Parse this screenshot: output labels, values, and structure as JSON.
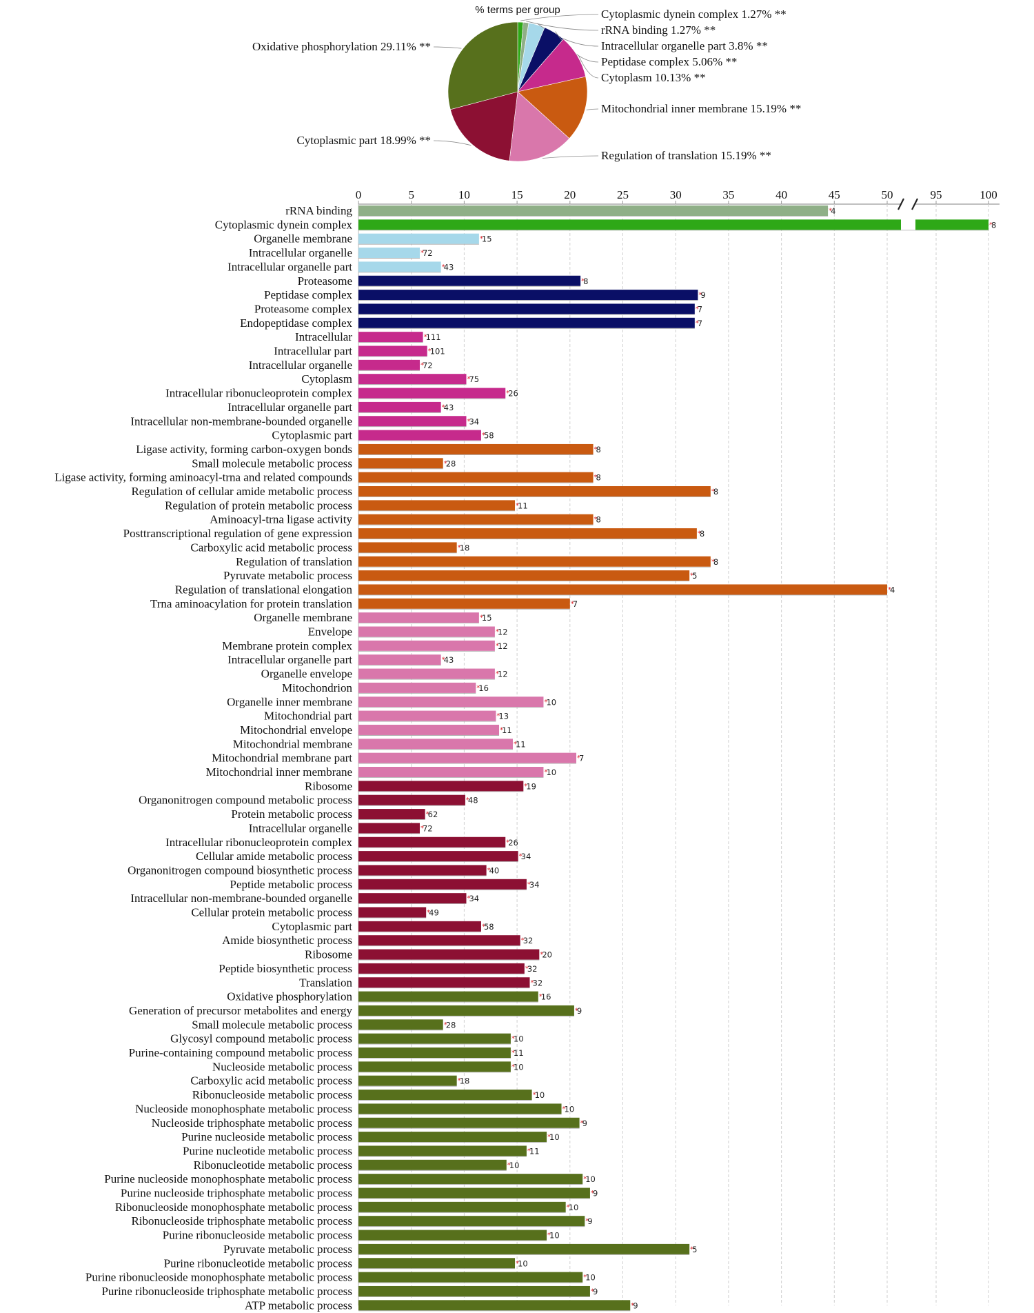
{
  "colors": {
    "rrna": "#8faf87",
    "dynein": "#2ea817",
    "organelle_part": "#a6d8ea",
    "peptidase": "#0a0f66",
    "cytoplasm": "#c62a8c",
    "mito_inner": "#c95a11",
    "translation_reg": "#d977ab",
    "cytoplasmic_part": "#8c1033",
    "oxphos": "#57701c",
    "marker": "#d9232a"
  },
  "chart_data": [
    {
      "type": "pie",
      "title": "% terms per group",
      "slices": [
        {
          "label": "Cytoplasmic dynein complex 1.27% **",
          "value": 1.27,
          "color_key": "dynein"
        },
        {
          "label": "rRNA binding 1.27% **",
          "value": 1.27,
          "color_key": "rrna"
        },
        {
          "label": "Intracellular organelle part 3.8% **",
          "value": 3.8,
          "color_key": "organelle_part"
        },
        {
          "label": "Peptidase complex 5.06% **",
          "value": 5.06,
          "color_key": "peptidase"
        },
        {
          "label": "Cytoplasm 10.13% **",
          "value": 10.13,
          "color_key": "cytoplasm"
        },
        {
          "label": "Mitochondrial inner membrane 15.19% **",
          "value": 15.19,
          "color_key": "mito_inner"
        },
        {
          "label": "Regulation of translation 15.19% **",
          "value": 15.19,
          "color_key": "translation_reg"
        },
        {
          "label": "Cytoplasmic part 18.99% **",
          "value": 18.99,
          "color_key": "cytoplasmic_part"
        },
        {
          "label": "Oxidative phosphorylation 29.11% **",
          "value": 29.11,
          "color_key": "oxphos"
        }
      ]
    },
    {
      "type": "bar",
      "orientation": "horizontal",
      "x_ticks": [
        "0",
        "5",
        "10",
        "15",
        "20",
        "25",
        "30",
        "35",
        "40",
        "45",
        "50",
        "95",
        "100"
      ],
      "x_break": [
        52,
        93
      ],
      "xlim": [
        0,
        100
      ],
      "grid": true,
      "bars": [
        {
          "term": "rRNA binding",
          "value": 44.4,
          "count": "4",
          "group": "rrna"
        },
        {
          "term": "Cytoplasmic dynein complex",
          "value": 100,
          "count": "8",
          "group": "dynein"
        },
        {
          "term": "Organelle membrane",
          "value": 11.4,
          "count": "15",
          "group": "organelle_part"
        },
        {
          "term": "Intracellular organelle",
          "value": 5.8,
          "count": "72",
          "group": "organelle_part"
        },
        {
          "term": "Intracellular organelle part",
          "value": 7.8,
          "count": "43",
          "group": "organelle_part"
        },
        {
          "term": "Proteasome",
          "value": 21.0,
          "count": "8",
          "group": "peptidase"
        },
        {
          "term": "Peptidase complex",
          "value": 32.1,
          "count": "9",
          "group": "peptidase"
        },
        {
          "term": "Proteasome complex",
          "value": 31.8,
          "count": "7",
          "group": "peptidase"
        },
        {
          "term": "Endopeptidase complex",
          "value": 31.8,
          "count": "7",
          "group": "peptidase"
        },
        {
          "term": "Intracellular",
          "value": 6.1,
          "count": "111",
          "group": "cytoplasm"
        },
        {
          "term": "Intracellular part",
          "value": 6.5,
          "count": "101",
          "group": "cytoplasm"
        },
        {
          "term": "Intracellular organelle",
          "value": 5.8,
          "count": "72",
          "group": "cytoplasm"
        },
        {
          "term": "Cytoplasm",
          "value": 10.2,
          "count": "75",
          "group": "cytoplasm"
        },
        {
          "term": "Intracellular ribonucleoprotein complex",
          "value": 13.9,
          "count": "26",
          "group": "cytoplasm"
        },
        {
          "term": "Intracellular organelle part",
          "value": 7.8,
          "count": "43",
          "group": "cytoplasm"
        },
        {
          "term": "Intracellular non-membrane-bounded organelle",
          "value": 10.2,
          "count": "34",
          "group": "cytoplasm"
        },
        {
          "term": "Cytoplasmic part",
          "value": 11.6,
          "count": "58",
          "group": "cytoplasm"
        },
        {
          "term": "Ligase activity, forming carbon-oxygen bonds",
          "value": 22.2,
          "count": "8",
          "group": "mito_inner"
        },
        {
          "term": "Small molecule metabolic process",
          "value": 8.0,
          "count": "28",
          "group": "mito_inner"
        },
        {
          "term": "Ligase activity, forming aminoacyl-trna and related compounds",
          "value": 22.2,
          "count": "8",
          "group": "mito_inner"
        },
        {
          "term": "Regulation of cellular amide metabolic process",
          "value": 33.3,
          "count": "8",
          "group": "mito_inner"
        },
        {
          "term": "Regulation of protein metabolic process",
          "value": 14.8,
          "count": "11",
          "group": "mito_inner"
        },
        {
          "term": "Aminoacyl-trna ligase activity",
          "value": 22.2,
          "count": "8",
          "group": "mito_inner"
        },
        {
          "term": "Posttranscriptional regulation of gene expression",
          "value": 32.0,
          "count": "8",
          "group": "mito_inner"
        },
        {
          "term": "Carboxylic acid metabolic process",
          "value": 9.3,
          "count": "18",
          "group": "mito_inner"
        },
        {
          "term": "Regulation of translation",
          "value": 33.3,
          "count": "8",
          "group": "mito_inner"
        },
        {
          "term": "Pyruvate metabolic process",
          "value": 31.3,
          "count": "5",
          "group": "mito_inner"
        },
        {
          "term": "Regulation of translational elongation",
          "value": 50.0,
          "count": "4",
          "group": "mito_inner"
        },
        {
          "term": "Trna aminoacylation for protein translation",
          "value": 20.0,
          "count": "7",
          "group": "mito_inner"
        },
        {
          "term": "Organelle membrane",
          "value": 11.4,
          "count": "15",
          "group": "translation_reg"
        },
        {
          "term": "Envelope",
          "value": 12.9,
          "count": "12",
          "group": "translation_reg"
        },
        {
          "term": "Membrane protein complex",
          "value": 12.9,
          "count": "12",
          "group": "translation_reg"
        },
        {
          "term": "Intracellular organelle part",
          "value": 7.8,
          "count": "43",
          "group": "translation_reg"
        },
        {
          "term": "Organelle envelope",
          "value": 12.9,
          "count": "12",
          "group": "translation_reg"
        },
        {
          "term": "Mitochondrion",
          "value": 11.1,
          "count": "16",
          "group": "translation_reg"
        },
        {
          "term": "Organelle inner membrane",
          "value": 17.5,
          "count": "10",
          "group": "translation_reg"
        },
        {
          "term": "Mitochondrial part",
          "value": 13.0,
          "count": "13",
          "group": "translation_reg"
        },
        {
          "term": "Mitochondrial envelope",
          "value": 13.3,
          "count": "11",
          "group": "translation_reg"
        },
        {
          "term": "Mitochondrial membrane",
          "value": 14.6,
          "count": "11",
          "group": "translation_reg"
        },
        {
          "term": "Mitochondrial membrane part",
          "value": 20.6,
          "count": "7",
          "group": "translation_reg"
        },
        {
          "term": "Mitochondrial inner membrane",
          "value": 17.5,
          "count": "10",
          "group": "translation_reg"
        },
        {
          "term": "Ribosome",
          "value": 15.6,
          "count": "19",
          "group": "cytoplasmic_part"
        },
        {
          "term": "Organonitrogen compound metabolic process",
          "value": 10.1,
          "count": "48",
          "group": "cytoplasmic_part"
        },
        {
          "term": "Protein metabolic process",
          "value": 6.3,
          "count": "62",
          "group": "cytoplasmic_part"
        },
        {
          "term": "Intracellular organelle",
          "value": 5.8,
          "count": "72",
          "group": "cytoplasmic_part"
        },
        {
          "term": "Intracellular ribonucleoprotein complex",
          "value": 13.9,
          "count": "26",
          "group": "cytoplasmic_part"
        },
        {
          "term": "Cellular amide metabolic process",
          "value": 15.1,
          "count": "34",
          "group": "cytoplasmic_part"
        },
        {
          "term": "Organonitrogen compound biosynthetic process",
          "value": 12.1,
          "count": "40",
          "group": "cytoplasmic_part"
        },
        {
          "term": "Peptide metabolic process",
          "value": 15.9,
          "count": "34",
          "group": "cytoplasmic_part"
        },
        {
          "term": "Intracellular non-membrane-bounded organelle",
          "value": 10.2,
          "count": "34",
          "group": "cytoplasmic_part"
        },
        {
          "term": "Cellular protein metabolic process",
          "value": 6.4,
          "count": "49",
          "group": "cytoplasmic_part"
        },
        {
          "term": "Cytoplasmic part",
          "value": 11.6,
          "count": "58",
          "group": "cytoplasmic_part"
        },
        {
          "term": "Amide biosynthetic process",
          "value": 15.3,
          "count": "32",
          "group": "cytoplasmic_part"
        },
        {
          "term": "Ribosome",
          "value": 17.1,
          "count": "20",
          "group": "cytoplasmic_part"
        },
        {
          "term": "Peptide biosynthetic process",
          "value": 15.7,
          "count": "32",
          "group": "cytoplasmic_part"
        },
        {
          "term": "Translation",
          "value": 16.2,
          "count": "32",
          "group": "cytoplasmic_part"
        },
        {
          "term": "Oxidative phosphorylation",
          "value": 17.0,
          "count": "16",
          "group": "oxphos"
        },
        {
          "term": "Generation of precursor metabolites and energy",
          "value": 20.4,
          "count": "9",
          "group": "oxphos"
        },
        {
          "term": "Small molecule metabolic process",
          "value": 8.0,
          "count": "28",
          "group": "oxphos"
        },
        {
          "term": "Glycosyl compound metabolic process",
          "value": 14.4,
          "count": "10",
          "group": "oxphos"
        },
        {
          "term": "Purine-containing compound metabolic process",
          "value": 14.4,
          "count": "11",
          "group": "oxphos"
        },
        {
          "term": "Nucleoside metabolic process",
          "value": 14.4,
          "count": "10",
          "group": "oxphos"
        },
        {
          "term": "Carboxylic acid metabolic process",
          "value": 9.3,
          "count": "18",
          "group": "oxphos"
        },
        {
          "term": "Ribonucleoside metabolic process",
          "value": 16.4,
          "count": "10",
          "group": "oxphos"
        },
        {
          "term": "Nucleoside monophosphate metabolic process",
          "value": 19.2,
          "count": "10",
          "group": "oxphos"
        },
        {
          "term": "Nucleoside triphosphate metabolic process",
          "value": 20.9,
          "count": "9",
          "group": "oxphos"
        },
        {
          "term": "Purine nucleoside metabolic process",
          "value": 17.8,
          "count": "10",
          "group": "oxphos"
        },
        {
          "term": "Purine nucleotide metabolic process",
          "value": 15.9,
          "count": "11",
          "group": "oxphos"
        },
        {
          "term": "Ribonucleotide metabolic process",
          "value": 14.0,
          "count": "10",
          "group": "oxphos"
        },
        {
          "term": "Purine nucleoside monophosphate metabolic process",
          "value": 21.2,
          "count": "10",
          "group": "oxphos"
        },
        {
          "term": "Purine nucleoside triphosphate metabolic process",
          "value": 21.9,
          "count": "9",
          "group": "oxphos"
        },
        {
          "term": "Ribonucleoside monophosphate metabolic process",
          "value": 19.6,
          "count": "10",
          "group": "oxphos"
        },
        {
          "term": "Ribonucleoside triphosphate metabolic process",
          "value": 21.4,
          "count": "9",
          "group": "oxphos"
        },
        {
          "term": "Purine ribonucleoside metabolic process",
          "value": 17.8,
          "count": "10",
          "group": "oxphos"
        },
        {
          "term": "Pyruvate metabolic process",
          "value": 31.3,
          "count": "5",
          "group": "oxphos"
        },
        {
          "term": "Purine ribonucleotide metabolic process",
          "value": 14.8,
          "count": "10",
          "group": "oxphos"
        },
        {
          "term": "Purine ribonucleoside monophosphate metabolic process",
          "value": 21.2,
          "count": "10",
          "group": "oxphos"
        },
        {
          "term": "Purine ribonucleoside triphosphate metabolic process",
          "value": 21.9,
          "count": "9",
          "group": "oxphos"
        },
        {
          "term": "ATP metabolic process",
          "value": 25.7,
          "count": "9",
          "group": "oxphos"
        }
      ]
    }
  ]
}
